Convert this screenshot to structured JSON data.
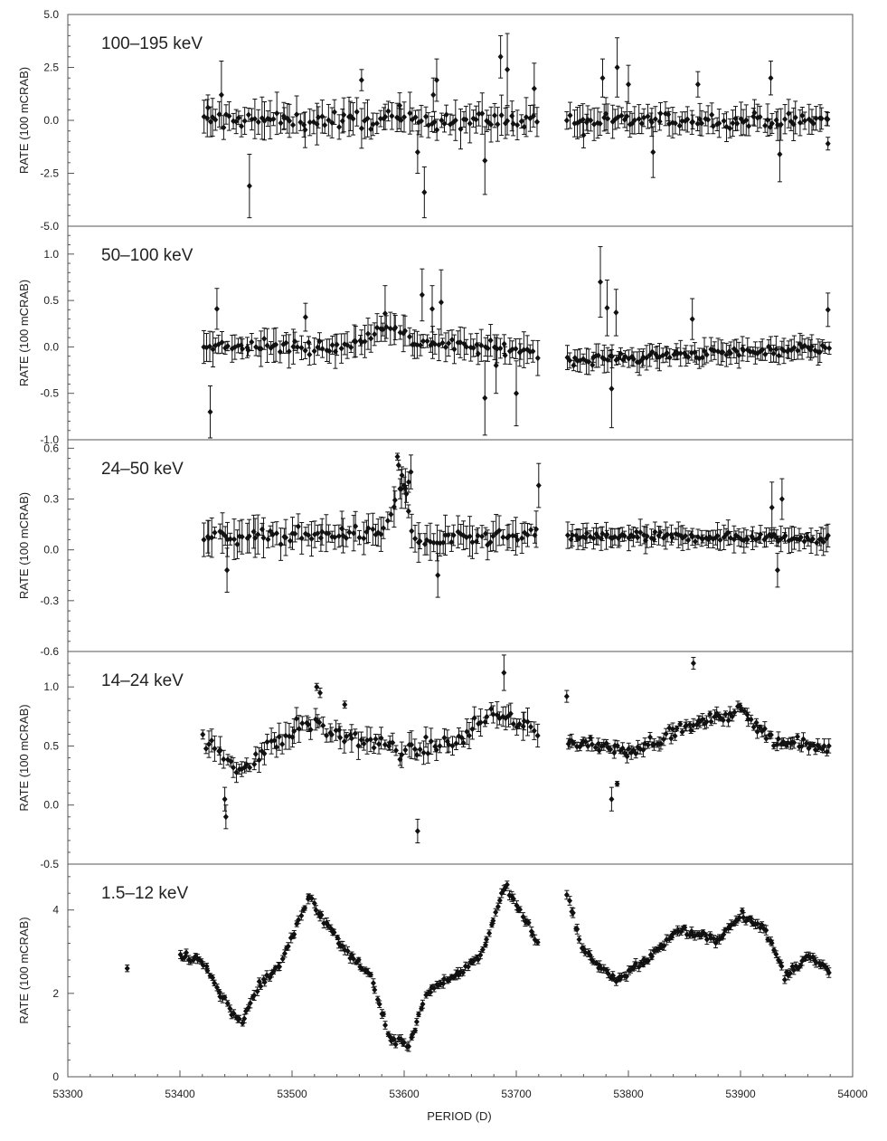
{
  "figure": {
    "xlabel": "PERIOD (D)",
    "x_ticks": [
      "53300",
      "53400",
      "53500",
      "53600",
      "53700",
      "53800",
      "53900",
      "54000"
    ]
  },
  "chart_data": [
    {
      "type": "scatter",
      "band_label": "100–195 keV",
      "ylabel": "RATE (100 mCRAB)",
      "xlim": [
        53300,
        54000
      ],
      "ylim": [
        -5.0,
        5.0
      ],
      "y_ticks": [
        "5.0",
        "2.5",
        "0.0",
        "-2.5",
        "-5.0"
      ],
      "segments": [
        [
          53418,
          53720
        ],
        [
          53745,
          53980
        ]
      ],
      "points": [
        [
          53425,
          0.6,
          0.6
        ],
        [
          53437,
          1.2,
          1.6
        ],
        [
          53462,
          -3.1,
          1.5
        ],
        [
          53493,
          0.1,
          0.5
        ],
        [
          53562,
          1.9,
          0.5
        ],
        [
          53596,
          0.7,
          0.6
        ],
        [
          53612,
          -1.5,
          1.0
        ],
        [
          53618,
          -3.4,
          1.2
        ],
        [
          53626,
          1.2,
          0.8
        ],
        [
          53629,
          1.9,
          1.0
        ],
        [
          53672,
          -1.9,
          1.6
        ],
        [
          53686,
          3.0,
          1.0
        ],
        [
          53692,
          2.4,
          1.7
        ],
        [
          53716,
          1.5,
          1.2
        ],
        [
          53760,
          -0.7,
          0.6
        ],
        [
          53777,
          2.0,
          0.9
        ],
        [
          53790,
          2.5,
          1.4
        ],
        [
          53800,
          1.7,
          0.9
        ],
        [
          53822,
          -1.5,
          1.2
        ],
        [
          53862,
          1.7,
          0.6
        ],
        [
          53927,
          2.0,
          0.8
        ],
        [
          53935,
          -1.6,
          1.3
        ],
        [
          53978,
          -1.1,
          0.3
        ]
      ],
      "trend": [
        [
          53420,
          0.0
        ],
        [
          53720,
          0.0
        ],
        [
          53745,
          0.0
        ],
        [
          53980,
          0.0
        ]
      ],
      "noise_points": [
        {
          "x_range": [
            53420,
            53720
          ],
          "count": 105,
          "spread": 0.6,
          "err": [
            0.3,
            1.0
          ]
        },
        {
          "x_range": [
            53745,
            53980
          ],
          "count": 90,
          "spread": 0.5,
          "err": [
            0.3,
            0.8
          ]
        }
      ]
    },
    {
      "type": "scatter",
      "band_label": "50–100 keV",
      "ylabel": "RATE (100 mCRAB)",
      "xlim": [
        53300,
        54000
      ],
      "ylim": [
        -1.0,
        1.3
      ],
      "y_ticks": [
        "1.0",
        "0.5",
        "0.0",
        "-0.5",
        "-1.0"
      ],
      "segments": [
        [
          53418,
          53720
        ],
        [
          53745,
          53980
        ]
      ],
      "points": [
        [
          53427,
          -0.7,
          0.28
        ],
        [
          53433,
          0.41,
          0.22
        ],
        [
          53512,
          0.32,
          0.15
        ],
        [
          53583,
          0.36,
          0.3
        ],
        [
          53616,
          0.56,
          0.28
        ],
        [
          53625,
          0.41,
          0.25
        ],
        [
          53633,
          0.48,
          0.35
        ],
        [
          53672,
          -0.55,
          0.4
        ],
        [
          53682,
          -0.2,
          0.3
        ],
        [
          53700,
          -0.5,
          0.35
        ],
        [
          53775,
          0.7,
          0.38
        ],
        [
          53781,
          0.42,
          0.3
        ],
        [
          53785,
          -0.45,
          0.42
        ],
        [
          53789,
          0.37,
          0.25
        ],
        [
          53857,
          0.3,
          0.22
        ],
        [
          53978,
          0.4,
          0.18
        ]
      ],
      "trend": [
        [
          53420,
          0.0
        ],
        [
          53550,
          0.0
        ],
        [
          53585,
          0.25
        ],
        [
          53610,
          0.05
        ],
        [
          53720,
          -0.05
        ],
        [
          53745,
          -0.15
        ],
        [
          53980,
          0.0
        ]
      ],
      "noise_points": [
        {
          "x_range": [
            53420,
            53720
          ],
          "count": 110,
          "spread": 0.1,
          "err": [
            0.05,
            0.2
          ]
        },
        {
          "x_range": [
            53745,
            53980
          ],
          "count": 100,
          "spread": 0.08,
          "err": [
            0.05,
            0.15
          ]
        }
      ]
    },
    {
      "type": "scatter",
      "band_label": "24–50 keV",
      "ylabel": "RATE (100 mCRAB)",
      "xlim": [
        53300,
        54000
      ],
      "ylim": [
        -0.6,
        0.65
      ],
      "y_ticks": [
        "0.6",
        "0.3",
        "0.0",
        "-0.3",
        "-0.6"
      ],
      "segments": [
        [
          53418,
          53720
        ],
        [
          53745,
          53980
        ]
      ],
      "points": [
        [
          53594,
          0.55,
          0.02
        ],
        [
          53595,
          0.5,
          0.03
        ],
        [
          53598,
          0.44,
          0.05
        ],
        [
          53600,
          0.38,
          0.05
        ],
        [
          53602,
          0.33,
          0.05
        ],
        [
          53604,
          0.4,
          0.06
        ],
        [
          53606,
          0.46,
          0.1
        ],
        [
          53442,
          -0.12,
          0.13
        ],
        [
          53630,
          -0.15,
          0.13
        ],
        [
          53720,
          0.38,
          0.13
        ],
        [
          53933,
          -0.12,
          0.1
        ],
        [
          53937,
          0.3,
          0.12
        ],
        [
          53928,
          0.25,
          0.15
        ]
      ],
      "trend": [
        [
          53420,
          0.07
        ],
        [
          53580,
          0.1
        ],
        [
          53600,
          0.4
        ],
        [
          53608,
          0.05
        ],
        [
          53720,
          0.08
        ],
        [
          53745,
          0.08
        ],
        [
          53980,
          0.07
        ]
      ],
      "noise_points": [
        {
          "x_range": [
            53420,
            53720
          ],
          "count": 110,
          "spread": 0.06,
          "err": [
            0.03,
            0.12
          ]
        },
        {
          "x_range": [
            53745,
            53980
          ],
          "count": 105,
          "spread": 0.04,
          "err": [
            0.02,
            0.08
          ]
        }
      ]
    },
    {
      "type": "scatter",
      "band_label": "14–24 keV",
      "ylabel": "RATE (100 mCRAB)",
      "xlim": [
        53300,
        54000
      ],
      "ylim": [
        -0.5,
        1.3
      ],
      "y_ticks": [
        "1.0",
        "0.5",
        "0.0",
        "-0.5"
      ],
      "segments": [
        [
          53418,
          53720
        ],
        [
          53745,
          53980
        ]
      ],
      "points": [
        [
          53440,
          0.05,
          0.1
        ],
        [
          53441,
          -0.1,
          0.1
        ],
        [
          53612,
          -0.22,
          0.1
        ],
        [
          53689,
          1.12,
          0.15
        ],
        [
          53858,
          1.2,
          0.05
        ],
        [
          53522,
          1.0,
          0.03
        ],
        [
          53525,
          0.95,
          0.04
        ],
        [
          53547,
          0.85,
          0.03
        ],
        [
          53745,
          0.92,
          0.05
        ],
        [
          53790,
          0.18,
          0.02
        ],
        [
          53785,
          0.05,
          0.1
        ]
      ],
      "trend": [
        [
          53420,
          0.55
        ],
        [
          53440,
          0.4
        ],
        [
          53455,
          0.3
        ],
        [
          53480,
          0.5
        ],
        [
          53510,
          0.7
        ],
        [
          53540,
          0.6
        ],
        [
          53600,
          0.45
        ],
        [
          53650,
          0.55
        ],
        [
          53680,
          0.8
        ],
        [
          53720,
          0.6
        ],
        [
          53745,
          0.55
        ],
        [
          53800,
          0.45
        ],
        [
          53850,
          0.65
        ],
        [
          53900,
          0.8
        ],
        [
          53930,
          0.55
        ],
        [
          53980,
          0.48
        ]
      ],
      "noise_points": [
        {
          "x_range": [
            53420,
            53720
          ],
          "count": 115,
          "spread": 0.1,
          "err": [
            0.03,
            0.12
          ]
        },
        {
          "x_range": [
            53745,
            53980
          ],
          "count": 115,
          "spread": 0.07,
          "err": [
            0.02,
            0.06
          ]
        }
      ]
    },
    {
      "type": "scatter",
      "band_label": "1.5–12 keV",
      "ylabel": "RATE (100 mCRAB)",
      "xlim": [
        53300,
        54000
      ],
      "ylim": [
        0,
        5.1
      ],
      "y_ticks": [
        "4",
        "2",
        "0"
      ],
      "segments": [
        [
          53352,
          53354
        ],
        [
          53398,
          53980
        ]
      ],
      "points": [
        [
          53353,
          2.6,
          0.08
        ]
      ],
      "trend": [
        [
          53400,
          2.9
        ],
        [
          53420,
          2.8
        ],
        [
          53435,
          2.0
        ],
        [
          53455,
          1.3
        ],
        [
          53470,
          2.2
        ],
        [
          53490,
          2.7
        ],
        [
          53515,
          4.3
        ],
        [
          53540,
          3.3
        ],
        [
          53570,
          2.4
        ],
        [
          53588,
          0.9
        ],
        [
          53605,
          0.8
        ],
        [
          53620,
          2.0
        ],
        [
          53650,
          2.5
        ],
        [
          53670,
          3.0
        ],
        [
          53690,
          4.6
        ],
        [
          53720,
          3.2
        ],
        [
          53745,
          4.4
        ],
        [
          53760,
          3.0
        ],
        [
          53790,
          2.3
        ],
        [
          53820,
          2.9
        ],
        [
          53845,
          3.5
        ],
        [
          53880,
          3.3
        ],
        [
          53900,
          3.9
        ],
        [
          53920,
          3.6
        ],
        [
          53940,
          2.4
        ],
        [
          53960,
          2.9
        ],
        [
          53980,
          2.5
        ]
      ],
      "noise_points": [
        {
          "x_range": [
            53400,
            53720
          ],
          "count": 170,
          "spread": 0.15,
          "err": [
            0.05,
            0.12
          ]
        },
        {
          "x_range": [
            53745,
            53980
          ],
          "count": 130,
          "spread": 0.15,
          "err": [
            0.05,
            0.12
          ]
        }
      ]
    }
  ]
}
